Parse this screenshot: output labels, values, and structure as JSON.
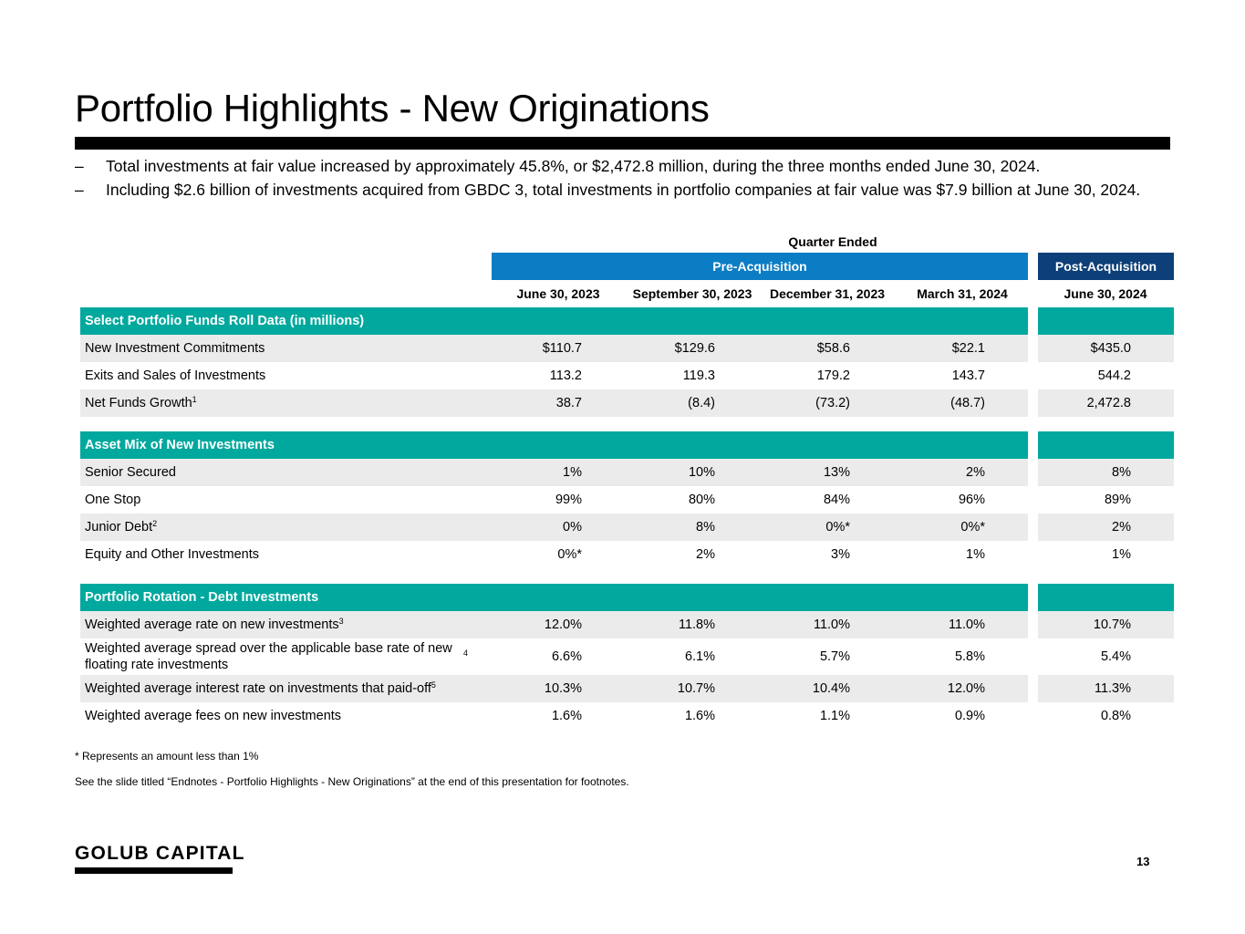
{
  "title": "Portfolio Highlights - New Originations",
  "bullets": [
    "Total investments at fair value increased by approximately 45.8%, or $2,472.8 million, during the three months ended June 30, 2024.",
    "Including $2.6 billion of investments acquired from GBDC 3, total investments in portfolio companies at fair value was $7.9 billion at June 30, 2024."
  ],
  "bullet_marker": "–",
  "table": {
    "quarter_ended": "Quarter Ended",
    "pre_acquisition": "Pre-Acquisition",
    "post_acquisition": "Post-Acquisition",
    "columns": [
      "June 30, 2023",
      "September 30, 2023",
      "December 31, 2023",
      "March 31, 2024",
      "June 30, 2024"
    ],
    "sections": [
      {
        "header": "Select Portfolio Funds Roll Data (in millions)",
        "rows": [
          {
            "label": "New Investment Commitments",
            "sup": "",
            "values": [
              "$110.7",
              "$129.6",
              "$58.6",
              "$22.1",
              "$435.0"
            ]
          },
          {
            "label": "Exits and Sales of Investments",
            "sup": "",
            "values": [
              "113.2",
              "119.3",
              "179.2",
              "143.7",
              "544.2"
            ]
          },
          {
            "label": "Net Funds Growth",
            "sup": "1",
            "values": [
              "38.7",
              "(8.4)",
              "(73.2)",
              "(48.7)",
              "2,472.8"
            ]
          }
        ]
      },
      {
        "header": "Asset Mix of New Investments",
        "rows": [
          {
            "label": "Senior Secured",
            "sup": "",
            "values": [
              "1%",
              "10%",
              "13%",
              "2%",
              "8%"
            ]
          },
          {
            "label": "One Stop",
            "sup": "",
            "values": [
              "99%",
              "80%",
              "84%",
              "96%",
              "89%"
            ]
          },
          {
            "label": "Junior Debt",
            "sup": "2",
            "values": [
              "0%",
              "8%",
              "0%*",
              "0%*",
              "2%"
            ]
          },
          {
            "label": "Equity and Other Investments",
            "sup": "",
            "values": [
              "0%*",
              "2%",
              "3%",
              "1%",
              "1%"
            ]
          }
        ]
      },
      {
        "header": "Portfolio Rotation - Debt Investments",
        "rows": [
          {
            "label": "Weighted average rate on new investments",
            "sup": "3",
            "values": [
              "12.0%",
              "11.8%",
              "11.0%",
              "11.0%",
              "10.7%"
            ]
          },
          {
            "label": "Weighted average spread over the applicable base rate of new floating rate investments",
            "sup": "4",
            "values": [
              "6.6%",
              "6.1%",
              "5.7%",
              "5.8%",
              "5.4%"
            ]
          },
          {
            "label": "Weighted average interest rate on investments that paid-off",
            "sup": "5",
            "values": [
              "10.3%",
              "10.7%",
              "10.4%",
              "12.0%",
              "11.3%"
            ]
          },
          {
            "label": "Weighted average fees on new investments",
            "sup": "",
            "values": [
              "1.6%",
              "1.6%",
              "1.1%",
              "0.9%",
              "0.8%"
            ]
          }
        ]
      }
    ]
  },
  "footnotes": [
    "* Represents an amount less than 1%",
    "See the slide titled “Endnotes - Portfolio Highlights - New Originations” at the end of this presentation for footnotes."
  ],
  "logo": "GOLUB CAPITAL",
  "page_number": "13",
  "colors": {
    "pre_acquisition_blue": "#0a7dc4",
    "post_acquisition_navy": "#0d3f78",
    "section_teal": "#00a89d",
    "row_gray": "#ebebeb"
  }
}
